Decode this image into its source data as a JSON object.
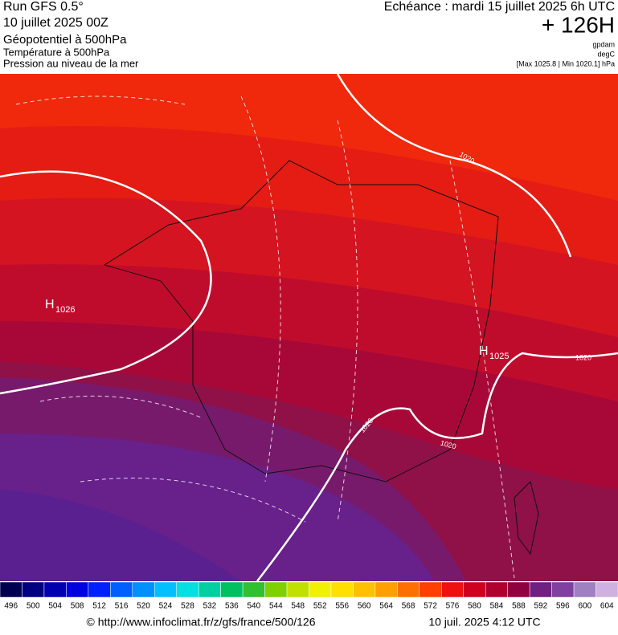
{
  "header": {
    "run": "Run GFS 0.5°",
    "date": "10 juillet 2025 00Z",
    "field1": "Géopotentiel à 500hPa",
    "field2": "Température à 500hPa",
    "field3": "Pression au niveau de la mer",
    "echeance": "Echéance : mardi 15 juillet 2025 6h UTC",
    "lead": "+ 126H",
    "unit1": "gpdam",
    "unit2": "degC",
    "range": "[Max 1025.8 | Min 1020.1] hPa"
  },
  "map": {
    "highs": [
      {
        "letter": "H",
        "value": "1026"
      },
      {
        "letter": "H",
        "value": "1025"
      }
    ],
    "isobar_labels": [
      "1020",
      "1020",
      "1020",
      "1020"
    ]
  },
  "legend": {
    "values": [
      496,
      500,
      504,
      508,
      512,
      516,
      520,
      524,
      528,
      532,
      536,
      540,
      544,
      548,
      552,
      556,
      560,
      564,
      568,
      572,
      576,
      580,
      584,
      588,
      592,
      596,
      600,
      604
    ],
    "colors": [
      "#000050",
      "#000080",
      "#0000b0",
      "#0000e0",
      "#0020ff",
      "#0060ff",
      "#0090ff",
      "#00c0ff",
      "#00e0e0",
      "#00d0a0",
      "#00c060",
      "#30c030",
      "#80d000",
      "#c0e000",
      "#f0f000",
      "#ffe000",
      "#ffc000",
      "#ffa000",
      "#ff7000",
      "#ff4000",
      "#f01010",
      "#d00020",
      "#b00030",
      "#900040",
      "#702080",
      "#8040a0",
      "#a080c0",
      "#d0b0e0"
    ]
  },
  "footer": {
    "source": "© http://www.infoclimat.fr/z/gfs/france/500/126",
    "timestamp": "10 juil. 2025  4:12 UTC"
  }
}
